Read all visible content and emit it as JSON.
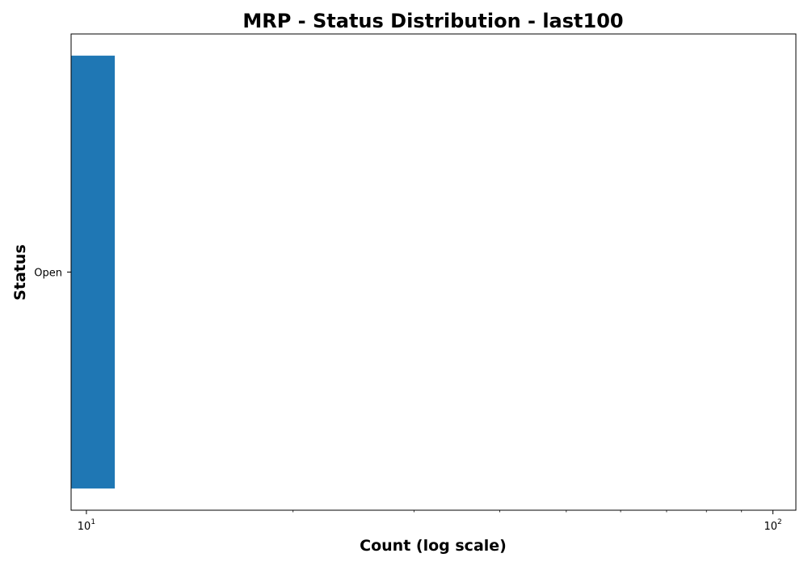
{
  "chart_data": {
    "type": "bar",
    "orientation": "horizontal",
    "title": "MRP - Status Distribution - last100",
    "xlabel": "Count (log scale)",
    "ylabel": "Status",
    "x_scale": "log",
    "xlim": [
      9.5,
      108
    ],
    "x_tick_labels": [
      {
        "base": "10",
        "exponent": "1",
        "value": 10
      },
      {
        "base": "10",
        "exponent": "2",
        "value": 100
      }
    ],
    "categories": [
      "Open"
    ],
    "values": [
      11
    ],
    "bar_color": "#1f77b4",
    "grid": false,
    "legend": "none"
  }
}
